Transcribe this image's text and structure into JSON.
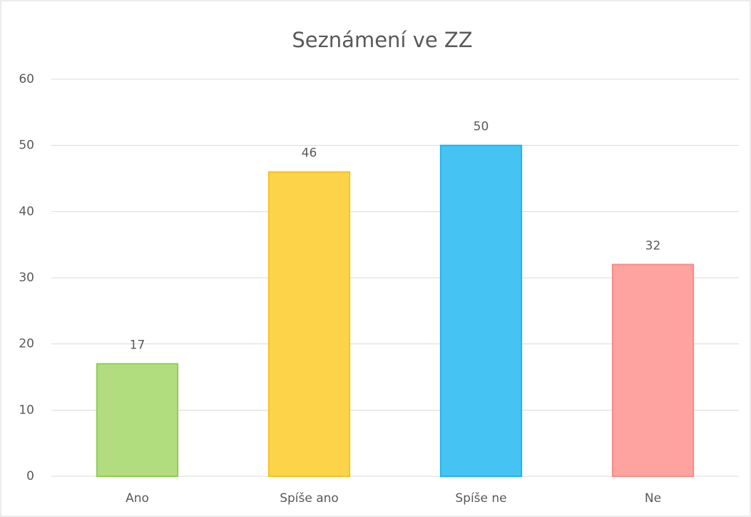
{
  "chart_data": {
    "type": "bar",
    "title": "Seznámení ve ZZ",
    "categories": [
      "Ano",
      "Spíše ano",
      "Spíše ne",
      "Ne"
    ],
    "values": [
      17,
      46,
      50,
      32
    ],
    "colors": [
      "#b1dd7f",
      "#fdd349",
      "#45c4f4",
      "#fea3a0"
    ],
    "edge_colors": [
      "#8fce53",
      "#f8c320",
      "#1fb4ec",
      "#fb8a86"
    ],
    "ylim": [
      0,
      60
    ],
    "yticks": [
      0,
      10,
      20,
      30,
      40,
      50,
      60
    ],
    "grid": true
  }
}
